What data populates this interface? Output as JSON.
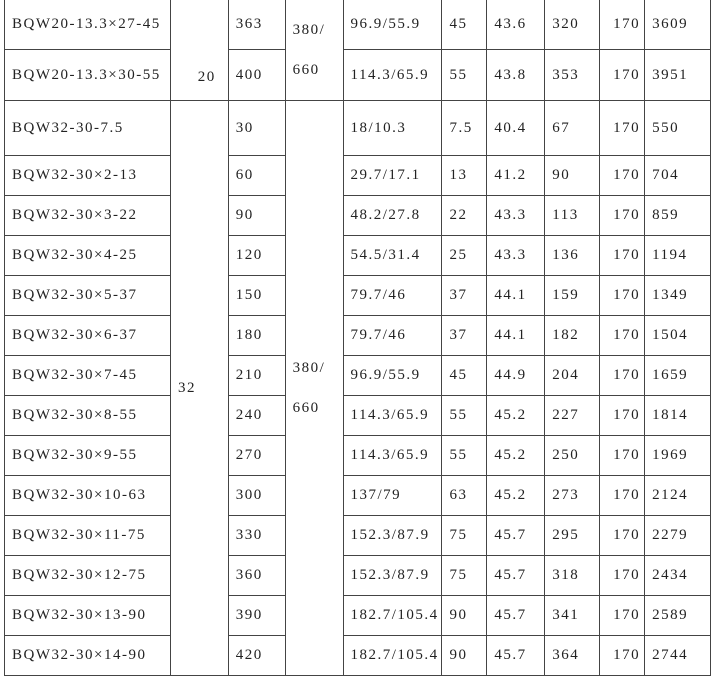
{
  "table": {
    "groups": [
      {
        "label": "20",
        "voltage_line1": "380/",
        "voltage_line2": "660"
      },
      {
        "label": "32",
        "voltage_line1": "380/",
        "voltage_line2": "660"
      }
    ],
    "rows": [
      {
        "model": "BQW20-13.3×27-45",
        "c3": "363",
        "c5": "96.9/55.9",
        "c6": "45",
        "c7": "43.6",
        "c8": "320",
        "c9": "170",
        "c10": "3609"
      },
      {
        "model": "BQW20-13.3×30-55",
        "c3": "400",
        "c5": "114.3/65.9",
        "c6": "55",
        "c7": "43.8",
        "c8": "353",
        "c9": "170",
        "c10": "3951"
      },
      {
        "model": "BQW32-30-7.5",
        "c3": "30",
        "c5": "18/10.3",
        "c6": "7.5",
        "c7": "40.4",
        "c8": "67",
        "c9": "170",
        "c10": "550"
      },
      {
        "model": "BQW32-30×2-13",
        "c3": "60",
        "c5": "29.7/17.1",
        "c6": "13",
        "c7": "41.2",
        "c8": "90",
        "c9": "170",
        "c10": "704"
      },
      {
        "model": "BQW32-30×3-22",
        "c3": "90",
        "c5": "48.2/27.8",
        "c6": "22",
        "c7": "43.3",
        "c8": "113",
        "c9": "170",
        "c10": "859"
      },
      {
        "model": "BQW32-30×4-25",
        "c3": "120",
        "c5": "54.5/31.4",
        "c6": "25",
        "c7": "43.3",
        "c8": "136",
        "c9": "170",
        "c10": "1194"
      },
      {
        "model": "BQW32-30×5-37",
        "c3": "150",
        "c5": "79.7/46",
        "c6": "37",
        "c7": "44.1",
        "c8": "159",
        "c9": "170",
        "c10": "1349"
      },
      {
        "model": "BQW32-30×6-37",
        "c3": "180",
        "c5": "79.7/46",
        "c6": "37",
        "c7": "44.1",
        "c8": "182",
        "c9": "170",
        "c10": "1504"
      },
      {
        "model": "BQW32-30×7-45",
        "c3": "210",
        "c5": "96.9/55.9",
        "c6": "45",
        "c7": "44.9",
        "c8": "204",
        "c9": "170",
        "c10": "1659"
      },
      {
        "model": "BQW32-30×8-55",
        "c3": "240",
        "c5": "114.3/65.9",
        "c6": "55",
        "c7": "45.2",
        "c8": "227",
        "c9": "170",
        "c10": "1814"
      },
      {
        "model": "BQW32-30×9-55",
        "c3": "270",
        "c5": "114.3/65.9",
        "c6": "55",
        "c7": "45.2",
        "c8": "250",
        "c9": "170",
        "c10": "1969"
      },
      {
        "model": "BQW32-30×10-63",
        "c3": "300",
        "c5": "137/79",
        "c6": "63",
        "c7": "45.2",
        "c8": "273",
        "c9": "170",
        "c10": "2124"
      },
      {
        "model": "BQW32-30×11-75",
        "c3": "330",
        "c5": "152.3/87.9",
        "c6": "75",
        "c7": "45.7",
        "c8": "295",
        "c9": "170",
        "c10": "2279"
      },
      {
        "model": "BQW32-30×12-75",
        "c3": "360",
        "c5": "152.3/87.9",
        "c6": "75",
        "c7": "45.7",
        "c8": "318",
        "c9": "170",
        "c10": "2434"
      },
      {
        "model": "BQW32-30×13-90",
        "c3": "390",
        "c5": "182.7/105.4",
        "c6": "90",
        "c7": "45.7",
        "c8": "341",
        "c9": "170",
        "c10": "2589"
      },
      {
        "model": "BQW32-30×14-90",
        "c3": "420",
        "c5": "182.7/105.4",
        "c6": "90",
        "c7": "45.7",
        "c8": "364",
        "c9": "170",
        "c10": "2744"
      }
    ]
  }
}
